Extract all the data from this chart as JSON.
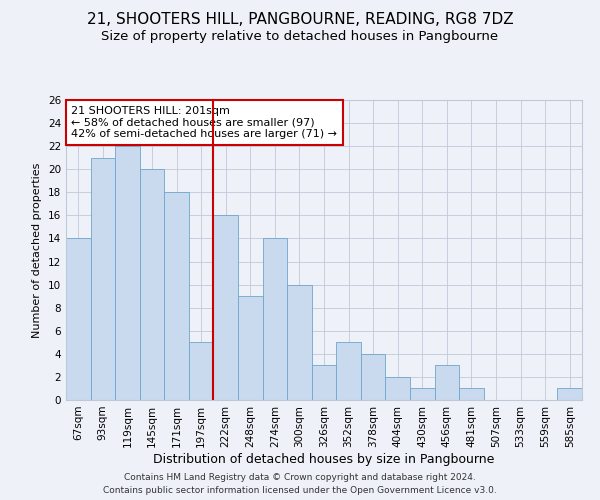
{
  "title1": "21, SHOOTERS HILL, PANGBOURNE, READING, RG8 7DZ",
  "title2": "Size of property relative to detached houses in Pangbourne",
  "xlabel": "Distribution of detached houses by size in Pangbourne",
  "ylabel": "Number of detached properties",
  "categories": [
    "67sqm",
    "93sqm",
    "119sqm",
    "145sqm",
    "171sqm",
    "197sqm",
    "222sqm",
    "248sqm",
    "274sqm",
    "300sqm",
    "326sqm",
    "352sqm",
    "378sqm",
    "404sqm",
    "430sqm",
    "456sqm",
    "481sqm",
    "507sqm",
    "533sqm",
    "559sqm",
    "585sqm"
  ],
  "values": [
    14,
    21,
    22,
    20,
    18,
    5,
    16,
    9,
    14,
    10,
    3,
    5,
    4,
    2,
    1,
    3,
    1,
    0,
    0,
    0,
    1
  ],
  "bar_color": "#c9d9ee",
  "bar_edge_color": "#6ea6cd",
  "vline_color": "#cc0000",
  "annotation_text": "21 SHOOTERS HILL: 201sqm\n← 58% of detached houses are smaller (97)\n42% of semi-detached houses are larger (71) →",
  "annotation_box_color": "#ffffff",
  "annotation_box_edge": "#cc0000",
  "grid_color": "#c0c8d8",
  "background_color": "#eef2f8",
  "ylim": [
    0,
    26
  ],
  "yticks": [
    0,
    2,
    4,
    6,
    8,
    10,
    12,
    14,
    16,
    18,
    20,
    22,
    24,
    26
  ],
  "footer1": "Contains HM Land Registry data © Crown copyright and database right 2024.",
  "footer2": "Contains public sector information licensed under the Open Government Licence v3.0.",
  "title1_fontsize": 11,
  "title2_fontsize": 9.5,
  "xlabel_fontsize": 9,
  "ylabel_fontsize": 8,
  "tick_fontsize": 7.5,
  "annotation_fontsize": 8,
  "footer_fontsize": 6.5
}
